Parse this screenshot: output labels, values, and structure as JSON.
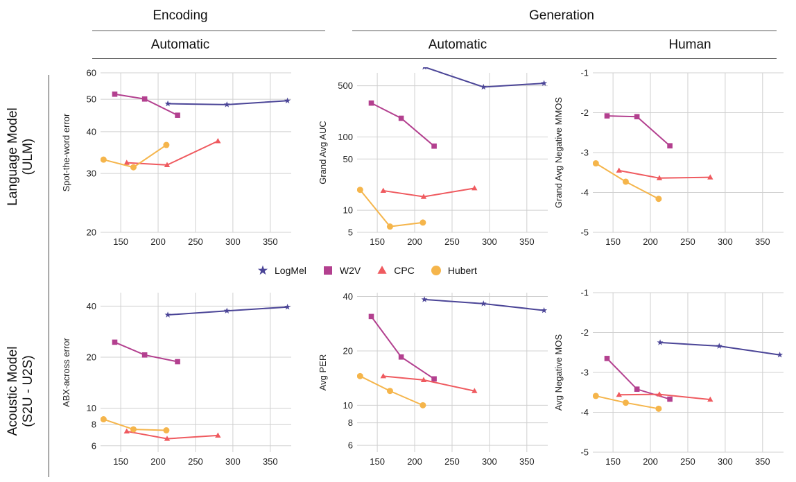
{
  "headers": {
    "encoding": "Encoding",
    "generation": "Generation",
    "enc_automatic": "Automatic",
    "gen_automatic": "Automatic",
    "gen_human": "Human"
  },
  "row_labels": {
    "ulm_line1": "Language Model",
    "ulm_line2": "(ULM)",
    "am_line1": "Acoustic Model",
    "am_line2": "(S2U - U2S)"
  },
  "colors": {
    "LogMel": "#4b4597",
    "W2V": "#b3408f",
    "CPC": "#ef5a5f",
    "Hubert": "#f5b54b",
    "grid": "#d0d0d0"
  },
  "legend": [
    {
      "name": "LogMel",
      "marker": "star-icon"
    },
    {
      "name": "W2V",
      "marker": "square-icon"
    },
    {
      "name": "CPC",
      "marker": "triangle-icon"
    },
    {
      "name": "Hubert",
      "marker": "circle-icon"
    }
  ],
  "chart_data": [
    {
      "id": "ulm-enc",
      "type": "line",
      "ylabel": "Spot-the-word error",
      "yscale": "log",
      "ylim": [
        20,
        60
      ],
      "yticks": [
        20,
        30,
        40,
        50,
        60
      ],
      "xlim": [
        123,
        378
      ],
      "xticks": [
        150,
        200,
        250,
        300,
        350
      ],
      "series": [
        {
          "name": "LogMel",
          "x": [
            213,
            292,
            373
          ],
          "y": [
            48.5,
            48.2,
            49.5
          ]
        },
        {
          "name": "W2V",
          "x": [
            142,
            182,
            226
          ],
          "y": [
            51.8,
            50.1,
            44.8
          ]
        },
        {
          "name": "CPC",
          "x": [
            158,
            212,
            280
          ],
          "y": [
            32.3,
            31.8,
            37.5
          ]
        },
        {
          "name": "Hubert",
          "x": [
            127,
            167,
            211
          ],
          "y": [
            33.0,
            31.3,
            36.5
          ]
        }
      ]
    },
    {
      "id": "ulm-gen-auto",
      "type": "line",
      "ylabel": "Grand Avg  AUC",
      "yscale": "log",
      "ylim": [
        5,
        750
      ],
      "yticks": [
        5,
        10,
        50,
        100,
        500
      ],
      "xlim": [
        123,
        378
      ],
      "xticks": [
        150,
        200,
        250,
        300,
        350
      ],
      "series": [
        {
          "name": "LogMel",
          "x": [
            213,
            292,
            373
          ],
          "y": [
            900,
            480,
            540
          ]
        },
        {
          "name": "W2V",
          "x": [
            142,
            182,
            226
          ],
          "y": [
            290,
            180,
            75
          ]
        },
        {
          "name": "CPC",
          "x": [
            158,
            212,
            280
          ],
          "y": [
            18.5,
            15.3,
            20
          ]
        },
        {
          "name": "Hubert",
          "x": [
            127,
            167,
            211
          ],
          "y": [
            19,
            6,
            6.8
          ]
        }
      ]
    },
    {
      "id": "ulm-gen-human",
      "type": "line",
      "ylabel": "Grand Avg Negative MMOS",
      "yscale": "linear",
      "ylim": [
        -5,
        -1
      ],
      "yticks": [
        -5,
        -4,
        -3,
        -2,
        -1
      ],
      "xlim": [
        123,
        378
      ],
      "xticks": [
        150,
        200,
        250,
        300,
        350
      ],
      "series": [
        {
          "name": "W2V",
          "x": [
            142,
            182,
            226
          ],
          "y": [
            -2.08,
            -2.1,
            -2.83
          ]
        },
        {
          "name": "CPC",
          "x": [
            158,
            212,
            280
          ],
          "y": [
            -3.45,
            -3.64,
            -3.62
          ]
        },
        {
          "name": "Hubert",
          "x": [
            127,
            167,
            211
          ],
          "y": [
            -3.27,
            -3.73,
            -4.16
          ]
        }
      ]
    },
    {
      "id": "am-enc",
      "type": "line",
      "ylabel": "ABX-across error",
      "yscale": "log",
      "ylim": [
        5.5,
        48
      ],
      "yticks": [
        6,
        8,
        10,
        20,
        40
      ],
      "xlim": [
        123,
        378
      ],
      "xticks": [
        150,
        200,
        250,
        300,
        350
      ],
      "series": [
        {
          "name": "LogMel",
          "x": [
            213,
            292,
            373
          ],
          "y": [
            35.5,
            37.5,
            39.5
          ]
        },
        {
          "name": "W2V",
          "x": [
            142,
            182,
            226
          ],
          "y": [
            24.5,
            20.6,
            18.8
          ]
        },
        {
          "name": "CPC",
          "x": [
            158,
            212,
            280
          ],
          "y": [
            7.3,
            6.6,
            6.9
          ]
        },
        {
          "name": "Hubert",
          "x": [
            127,
            167,
            211
          ],
          "y": [
            8.6,
            7.5,
            7.4
          ]
        }
      ]
    },
    {
      "id": "am-gen-auto",
      "type": "line",
      "ylabel": "Avg PER",
      "yscale": "log",
      "ylim": [
        5.5,
        42
      ],
      "yticks": [
        6,
        8,
        10,
        20,
        40
      ],
      "xlim": [
        123,
        378
      ],
      "xticks": [
        150,
        200,
        250,
        300,
        350
      ],
      "series": [
        {
          "name": "LogMel",
          "x": [
            213,
            292,
            373
          ],
          "y": [
            38.5,
            36.5,
            33.5
          ]
        },
        {
          "name": "W2V",
          "x": [
            142,
            182,
            226
          ],
          "y": [
            31,
            18.5,
            14
          ]
        },
        {
          "name": "CPC",
          "x": [
            158,
            212,
            280
          ],
          "y": [
            14.5,
            13.8,
            12
          ]
        },
        {
          "name": "Hubert",
          "x": [
            127,
            167,
            211
          ],
          "y": [
            14.5,
            12,
            10
          ]
        }
      ]
    },
    {
      "id": "am-gen-human",
      "type": "line",
      "ylabel": "Avg Negative MOS",
      "yscale": "linear",
      "ylim": [
        -5,
        -1
      ],
      "yticks": [
        -5,
        -4,
        -3,
        -2,
        -1
      ],
      "xlim": [
        123,
        378
      ],
      "xticks": [
        150,
        200,
        250,
        300,
        350
      ],
      "series": [
        {
          "name": "LogMel",
          "x": [
            213,
            292,
            373
          ],
          "y": [
            -2.25,
            -2.34,
            -2.56
          ]
        },
        {
          "name": "W2V",
          "x": [
            142,
            182,
            226
          ],
          "y": [
            -2.65,
            -3.42,
            -3.67
          ]
        },
        {
          "name": "CPC",
          "x": [
            158,
            212,
            280
          ],
          "y": [
            -3.56,
            -3.55,
            -3.68
          ]
        },
        {
          "name": "Hubert",
          "x": [
            127,
            167,
            211
          ],
          "y": [
            -3.59,
            -3.76,
            -3.91
          ]
        }
      ]
    }
  ]
}
